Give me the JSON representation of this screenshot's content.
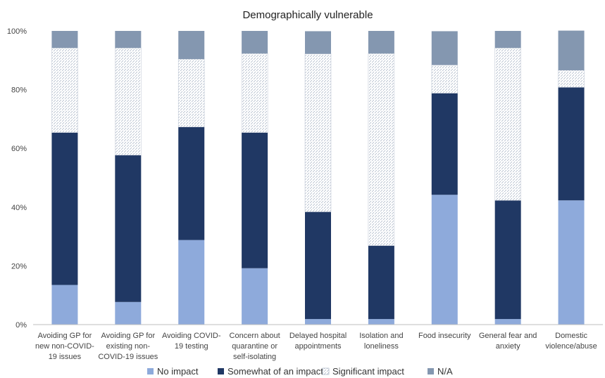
{
  "chart_data": {
    "type": "bar",
    "stacked": "percent",
    "title": "Demographically vulnerable",
    "xlabel": "",
    "ylabel": "",
    "ylim": [
      0,
      100
    ],
    "y_ticks": [
      "0%",
      "20%",
      "40%",
      "60%",
      "80%",
      "100%"
    ],
    "grid": false,
    "legend_position": "bottom",
    "categories": [
      [
        "Avoiding GP for",
        "new non-COVID-",
        "19 issues"
      ],
      [
        "Avoiding GP for",
        "existing non-",
        "COVID-19 issues"
      ],
      [
        "Avoiding COVID-",
        "19 testing"
      ],
      [
        "Concern about",
        "quarantine or",
        "self-isolating"
      ],
      [
        "Delayed hospital",
        "appointments"
      ],
      [
        "Isolation and",
        "loneliness"
      ],
      [
        "Food insecurity"
      ],
      [
        "General fear and",
        "anxiety"
      ],
      [
        "Domestic",
        "violence/abuse"
      ]
    ],
    "series": [
      {
        "name": "No impact",
        "color": "#8eaadb",
        "pattern": "solid",
        "values": [
          13.5,
          7.7,
          28.8,
          19.2,
          1.9,
          1.9,
          44.2,
          1.9,
          42.3
        ]
      },
      {
        "name": "Somewhat of an impact",
        "color": "#203864",
        "pattern": "solid",
        "values": [
          51.9,
          50.0,
          38.5,
          46.2,
          36.5,
          25.0,
          34.6,
          40.4,
          38.5
        ]
      },
      {
        "name": "Significant impact",
        "color": "#d6dce5",
        "pattern": "dotted",
        "values": [
          28.8,
          36.5,
          23.1,
          26.9,
          53.8,
          65.4,
          9.6,
          51.9,
          5.8
        ]
      },
      {
        "name": "N/A",
        "color": "#8497b0",
        "pattern": "solid",
        "values": [
          5.8,
          5.8,
          9.6,
          7.7,
          7.7,
          7.7,
          11.5,
          5.8,
          13.5
        ]
      }
    ]
  }
}
